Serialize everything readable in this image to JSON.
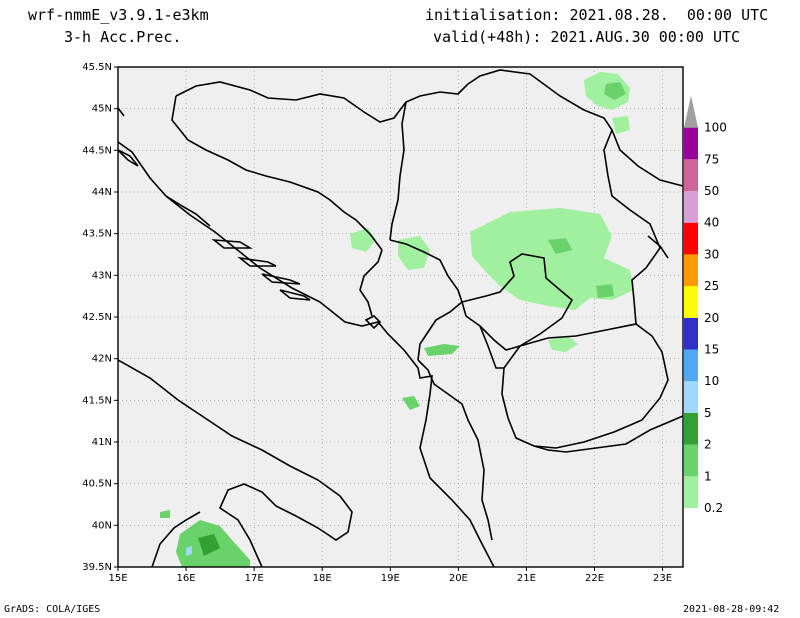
{
  "header": {
    "model": "wrf-nmmE_v3.9.1-e3km",
    "field": "3-h Acc.Prec.",
    "init": "initialisation: 2021.08.28.  00:00 UTC",
    "valid": "valid(+48h): 2021.AUG.30 00:00 UTC"
  },
  "footer": {
    "left": "GrADS: COLA/IGES",
    "right": "2021-08-28-09:42"
  },
  "map": {
    "lat_labels": [
      "45.5N",
      "45N",
      "44.5N",
      "44N",
      "43.5N",
      "43N",
      "42.5N",
      "42N",
      "41.5N",
      "41N",
      "40.5N",
      "40N",
      "39.5N"
    ],
    "lon_labels": [
      "15E",
      "16E",
      "17E",
      "18E",
      "19E",
      "20E",
      "21E",
      "22E",
      "23E"
    ],
    "background_color": "#efefef",
    "border_color": "#000000",
    "grid": "dotted"
  },
  "colorbar": {
    "levels": [
      "0.2",
      "1",
      "2",
      "5",
      "10",
      "15",
      "20",
      "25",
      "30",
      "40",
      "50",
      "75",
      "100"
    ],
    "colors": [
      "#ffffff",
      "#a0f0a0",
      "#6ad26a",
      "#32a032",
      "#9fd8fa",
      "#52a8f0",
      "#3030c8",
      "#ffff00",
      "#ff9a00",
      "#ff0000",
      "#d8a0d8",
      "#cc6699",
      "#990099",
      "#a0a0a0"
    ]
  }
}
